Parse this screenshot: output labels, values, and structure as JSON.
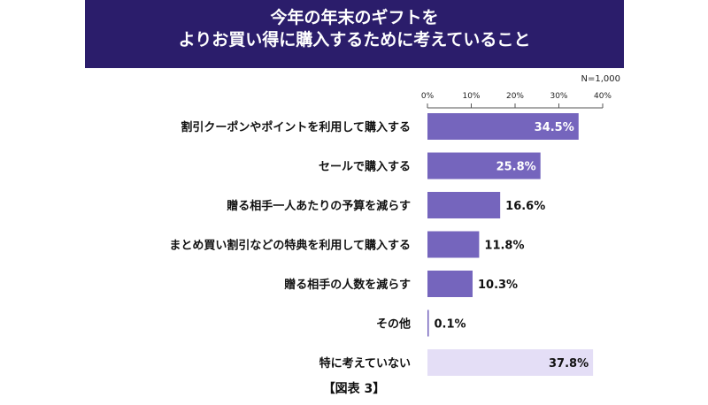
{
  "title": {
    "line1": "今年の年末のギフトを",
    "line2": "よりお買い得に購入するために考えていること"
  },
  "sample_note": "N=1,000",
  "caption": "【図表 3】",
  "colors": {
    "banner": "#2b1d6b",
    "bar": "#7565bd",
    "bar_highlight": "#e4def6",
    "axis": "#555555"
  },
  "chart_data": {
    "type": "bar",
    "orientation": "horizontal",
    "categories": [
      "割引クーポンやポイントを利用して購入する",
      "セールで購入する",
      "贈る相手一人あたりの予算を減らす",
      "まとめ買い割引などの特典を利用して購入する",
      "贈る相手の人数を減らす",
      "その他",
      "特に考えていない"
    ],
    "values": [
      34.5,
      25.8,
      16.6,
      11.8,
      10.3,
      0.1,
      37.8
    ],
    "value_labels": [
      "34.5%",
      "25.8%",
      "16.6%",
      "11.8%",
      "10.3%",
      "0.1%",
      "37.8%"
    ],
    "highlight_index": 6,
    "xlim": [
      0,
      40
    ],
    "xticks": [
      0,
      10,
      20,
      30,
      40
    ],
    "xtick_labels": [
      "0%",
      "10%",
      "20%",
      "30%",
      "40%"
    ],
    "title": "今年の年末のギフトをよりお買い得に購入するために考えていること",
    "xlabel": "",
    "ylabel": "",
    "grid": false
  }
}
